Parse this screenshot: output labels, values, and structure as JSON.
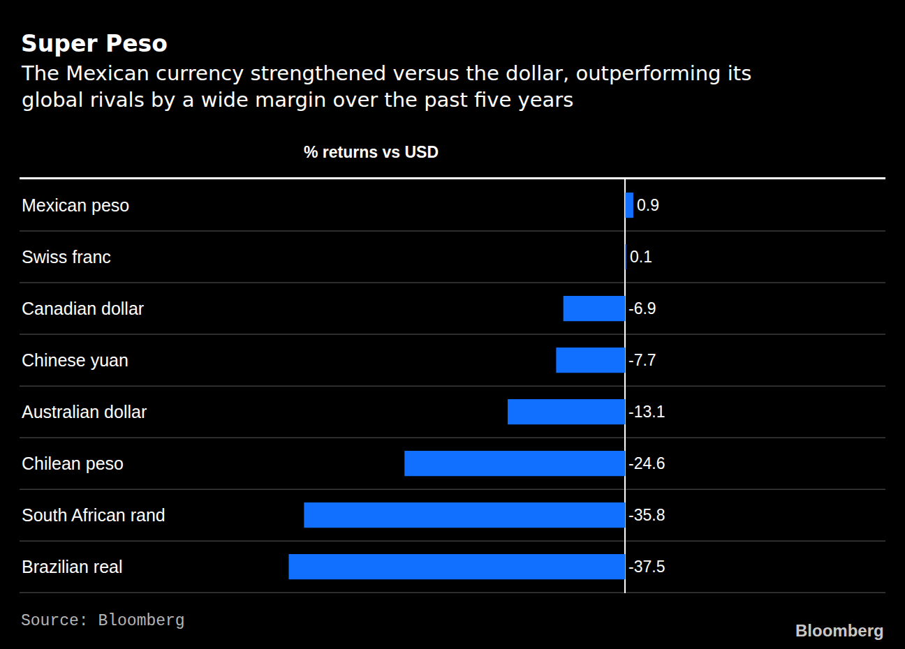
{
  "chart_data": {
    "type": "bar",
    "orientation": "horizontal",
    "title": "Super Peso",
    "subtitle": "The Mexican currency strengthened versus the dollar, outperforming its global rivals by a wide margin over the past five years",
    "xlabel": "% returns vs USD",
    "source": "Source: Bloomberg",
    "credit": "Bloomberg",
    "categories": [
      "Mexican peso",
      "Swiss franc",
      "Canadian dollar",
      "Chinese yuan",
      "Australian dollar",
      "Chilean peso",
      "South African rand",
      "Brazilian real"
    ],
    "values": [
      0.9,
      0.1,
      -6.9,
      -7.7,
      -13.1,
      -24.6,
      -35.8,
      -37.5
    ],
    "color": "#1170ff",
    "xlim": [
      -67.5,
      29
    ],
    "xticks": [
      0
    ],
    "grid": true,
    "data_labels": true,
    "tick_labels": "y"
  }
}
